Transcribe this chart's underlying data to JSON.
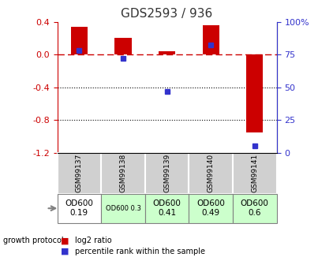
{
  "title": "GDS2593 / 936",
  "samples": [
    "GSM99137",
    "GSM99138",
    "GSM99139",
    "GSM99140",
    "GSM99141"
  ],
  "log2_ratio": [
    0.34,
    0.2,
    0.04,
    0.36,
    -0.95
  ],
  "percentile_rank": [
    78,
    72,
    47,
    82,
    5
  ],
  "ylim_left": [
    -1.2,
    0.4
  ],
  "ylim_right": [
    0,
    100
  ],
  "yticks_left": [
    0.4,
    0.0,
    -0.4,
    -0.8,
    -1.2
  ],
  "yticks_right": [
    100,
    75,
    50,
    25,
    0
  ],
  "bar_color": "#cc0000",
  "dot_color": "#3333cc",
  "background_color": "#ffffff",
  "plot_bg_color": "#ffffff",
  "growth_protocol_labels": [
    "OD600\n0.19",
    "OD600 0.3",
    "OD600\n0.41",
    "OD600\n0.49",
    "OD600\n0.6"
  ],
  "growth_protocol_bg": [
    "#ffffff",
    "#ccffcc",
    "#ccffcc",
    "#ccffcc",
    "#ccffcc"
  ],
  "growth_protocol_fontsize": [
    7.5,
    6.0,
    7.5,
    7.5,
    7.5
  ],
  "sample_label_bg": "#d0d0d0",
  "title_color": "#333333",
  "left_axis_color": "#cc0000",
  "right_axis_color": "#3333cc"
}
